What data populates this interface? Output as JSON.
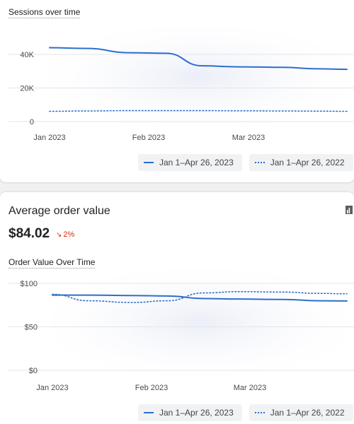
{
  "sessions_card": {
    "subtitle": "Sessions over time",
    "legend": [
      {
        "label": "Jan 1–Apr 26, 2023",
        "style": "solid"
      },
      {
        "label": "Jan 1–Apr 26, 2022",
        "style": "dotted"
      }
    ]
  },
  "aov_card": {
    "title": "Average order value",
    "value": "$84.02",
    "delta_icon": "arrow-down-right-icon",
    "delta": "2%",
    "delta_color": "#d72c0d",
    "corner_icon": "bar-chart-icon",
    "subtitle": "Order Value Over Time",
    "legend": [
      {
        "label": "Jan 1–Apr 26, 2023",
        "style": "solid"
      },
      {
        "label": "Jan 1–Apr 26, 2022",
        "style": "dotted"
      }
    ]
  },
  "colors": {
    "series": "#2c6ecb",
    "grid": "#e4e5e7",
    "axis_text": "#4a4a4a"
  },
  "chart_data": [
    {
      "type": "line",
      "title": "Sessions over time",
      "x_ticks": [
        "Jan 2023",
        "Feb 2023",
        "Mar 2023"
      ],
      "y_ticks": [
        "0",
        "20K",
        "40K"
      ],
      "ylim": [
        0,
        48000
      ],
      "x": [
        "2023-01-01",
        "2023-01-15",
        "2023-02-01",
        "2023-02-15",
        "2023-03-01",
        "2023-03-15",
        "2023-04-01",
        "2023-04-15",
        "2023-04-26"
      ],
      "series": [
        {
          "name": "Jan 1–Apr 26, 2023",
          "style": "solid",
          "values": [
            44000,
            43600,
            41000,
            40700,
            33200,
            32600,
            32300,
            31400,
            31100
          ]
        },
        {
          "name": "Jan 1–Apr 26, 2022",
          "style": "dotted",
          "values": [
            6100,
            6300,
            6500,
            6500,
            6500,
            6400,
            6300,
            6200,
            6100
          ]
        }
      ],
      "grid": true
    },
    {
      "type": "line",
      "title": "Order Value Over Time",
      "x_ticks": [
        "Jan 2023",
        "Feb 2023",
        "Mar 2023"
      ],
      "y_ticks": [
        "$0",
        "$50",
        "$100"
      ],
      "ylim": [
        0,
        100
      ],
      "x": [
        "2023-01-01",
        "2023-01-15",
        "2023-02-01",
        "2023-02-15",
        "2023-03-01",
        "2023-03-15",
        "2023-04-01",
        "2023-04-15",
        "2023-04-26"
      ],
      "series": [
        {
          "name": "Jan 1–Apr 26, 2023",
          "style": "solid",
          "values": [
            86.5,
            86.5,
            86,
            85.5,
            82.5,
            82,
            81.5,
            80,
            79.8
          ]
        },
        {
          "name": "Jan 1–Apr 26, 2022",
          "style": "dotted",
          "values": [
            87.5,
            80,
            78,
            80,
            89,
            90.5,
            90,
            88.5,
            88
          ]
        }
      ],
      "grid": true
    }
  ]
}
